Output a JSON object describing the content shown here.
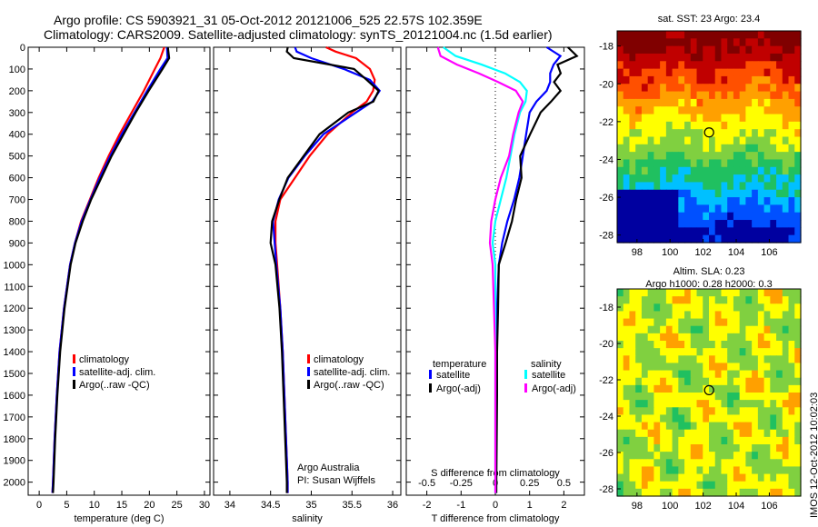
{
  "figure": {
    "title_line1": "Argo profile: CS 5903921_31 05-Oct-2012 20121006_525 22.57S 102.359E",
    "title_line2": "Climatology: CARS2009. Satellite-adjusted climatology: synTS_20121004.nc (1.5d earlier)",
    "stamp": "IMOS 12-Oct-2012 10:02:03"
  },
  "colors": {
    "climatology": "#ff0000",
    "satellite": "#0000ff",
    "argo": "#000000",
    "salinity_satellite": "#00ffff",
    "salinity_argo": "#ff00ff"
  },
  "chart_data": [
    {
      "type": "line",
      "name": "temperature-panel",
      "xlabel": "temperature (deg C)",
      "xlim": [
        -2,
        31
      ],
      "ylim": [
        2060,
        0
      ],
      "xticks": [
        "0",
        "5",
        "10",
        "15",
        "20",
        "25",
        "30"
      ],
      "yticks": [
        "0",
        "100",
        "200",
        "300",
        "400",
        "500",
        "600",
        "700",
        "800",
        "900",
        "1000",
        "1100",
        "1200",
        "1300",
        "1400",
        "1500",
        "1600",
        "1700",
        "1800",
        "1900",
        "2000"
      ],
      "legend": [
        "climatology",
        "satellite-adj. clim.",
        "Argo(..raw -QC)"
      ],
      "depth": [
        0,
        50,
        100,
        200,
        300,
        400,
        500,
        600,
        700,
        800,
        900,
        1000,
        1200,
        1400,
        1600,
        1800,
        2000,
        2050
      ],
      "series": [
        {
          "name": "climatology",
          "color": "#ff0000",
          "values": [
            22.7,
            22.0,
            21.0,
            19.0,
            16.8,
            14.6,
            12.6,
            10.8,
            9.2,
            7.6,
            6.5,
            5.6,
            4.5,
            3.7,
            3.2,
            2.8,
            2.5,
            2.4
          ]
        },
        {
          "name": "satellite-adj. clim.",
          "color": "#0000ff",
          "values": [
            23.2,
            23.3,
            22.0,
            19.6,
            17.3,
            15.0,
            12.9,
            11.0,
            9.3,
            7.7,
            6.5,
            5.6,
            4.5,
            3.7,
            3.2,
            2.8,
            2.5,
            2.4
          ]
        },
        {
          "name": "Argo(..raw -QC)",
          "color": "#000000",
          "values": [
            23.5,
            23.6,
            22.3,
            19.8,
            17.5,
            15.2,
            13.1,
            11.2,
            9.4,
            7.8,
            6.6,
            5.7,
            4.6,
            3.8,
            3.3,
            2.9,
            2.6,
            2.5
          ]
        }
      ]
    },
    {
      "type": "line",
      "name": "salinity-panel",
      "xlabel": "salinity",
      "xlim": [
        33.8,
        36.1
      ],
      "ylim": [
        2060,
        0
      ],
      "xticks": [
        "34",
        "34.5",
        "35",
        "35.5",
        "36"
      ],
      "legend": [
        "climatology",
        "satellite-adj. clim.",
        "Argo(..raw -QC)"
      ],
      "annotation": [
        "Argo Australia",
        "PI: Susan Wijffels"
      ],
      "depth": [
        0,
        20,
        50,
        100,
        150,
        200,
        250,
        300,
        400,
        500,
        600,
        700,
        800,
        900,
        1000,
        1200,
        1400,
        1600,
        1800,
        2000,
        2050
      ],
      "series": [
        {
          "name": "climatology",
          "color": "#ff0000",
          "values": [
            35.18,
            35.3,
            35.55,
            35.72,
            35.78,
            35.76,
            35.68,
            35.5,
            35.2,
            34.98,
            34.8,
            34.62,
            34.56,
            34.56,
            34.58,
            34.62,
            34.65,
            34.67,
            34.69,
            34.71,
            34.71
          ]
        },
        {
          "name": "satellite-adj. clim.",
          "color": "#0000ff",
          "values": [
            34.8,
            34.82,
            35.0,
            35.4,
            35.72,
            35.84,
            35.75,
            35.55,
            35.15,
            34.92,
            34.72,
            34.6,
            34.53,
            34.55,
            34.57,
            34.62,
            34.65,
            34.67,
            34.69,
            34.71,
            34.71
          ]
        },
        {
          "name": "Argo(..raw -QC)",
          "color": "#000000",
          "values": [
            34.72,
            34.7,
            34.78,
            35.52,
            35.68,
            35.82,
            35.76,
            35.45,
            35.1,
            34.9,
            34.72,
            34.6,
            34.52,
            34.5,
            34.56,
            34.61,
            34.64,
            34.66,
            34.68,
            34.7,
            34.7
          ]
        }
      ]
    },
    {
      "type": "line",
      "name": "difference-panel",
      "xlabel": "T difference from climatology",
      "xlabel_top": "S difference from climatology",
      "xlim": [
        -2.6,
        2.6
      ],
      "ylim": [
        2060,
        0
      ],
      "xticks": [
        "-2",
        "-1",
        "0",
        "1",
        "2"
      ],
      "xticks_salinity": [
        "-0.5",
        "-0.25",
        "0",
        "0.25",
        "0.5"
      ],
      "legend_titles": [
        "temperature",
        "salinity"
      ],
      "legend": [
        "satellite",
        "Argo(-adj)",
        "satellite",
        "Argo(-adj)"
      ],
      "depth": [
        0,
        40,
        80,
        120,
        160,
        200,
        250,
        300,
        400,
        500,
        600,
        700,
        800,
        900,
        1000,
        1200,
        1400,
        1600,
        1800,
        2000,
        2050
      ],
      "series": [
        {
          "name": "satellite",
          "color": "#0000ff",
          "values": [
            1.5,
            1.9,
            1.7,
            1.6,
            1.6,
            1.5,
            1.2,
            1.0,
            0.9,
            0.8,
            0.7,
            0.55,
            0.35,
            0.2,
            0.1,
            0.05,
            0.03,
            0.02,
            0.02,
            0.02,
            0.02
          ]
        },
        {
          "name": "Argo(-adj)",
          "color": "#000000",
          "values": [
            2.1,
            2.4,
            1.8,
            1.9,
            1.7,
            1.9,
            1.6,
            1.3,
            1.0,
            0.7,
            0.75,
            0.6,
            0.5,
            0.3,
            0.1,
            0.08,
            0.05,
            0.05,
            0.04,
            0.03,
            0.03
          ]
        },
        {
          "name": "satellite",
          "color": "#00ffff",
          "values": [
            -0.38,
            -0.29,
            -0.1,
            0.07,
            0.18,
            0.23,
            0.22,
            0.18,
            0.14,
            0.11,
            0.08,
            0.04,
            0.0,
            -0.02,
            0.0,
            0.0,
            0.0,
            0.0,
            0.0,
            0.0,
            0.0
          ]
        },
        {
          "name": "Argo(-adj)",
          "color": "#ff00ff",
          "values": [
            -0.42,
            -0.4,
            -0.28,
            -0.12,
            0.02,
            0.15,
            0.2,
            0.17,
            0.13,
            0.1,
            0.04,
            0.0,
            -0.03,
            -0.04,
            -0.02,
            -0.01,
            0.0,
            0.0,
            0.0,
            0.0,
            0.0
          ]
        }
      ]
    },
    {
      "type": "heatmap",
      "name": "sst-map",
      "title": "sat. SST: 23 Argo: 23.4",
      "xlim": [
        96.8,
        107.9
      ],
      "ylim": [
        -28.4,
        -17.2
      ],
      "xticks": [
        "98",
        "100",
        "102",
        "104",
        "106"
      ],
      "yticks": [
        "-18",
        "-20",
        "-22",
        "-24",
        "-26",
        "-28"
      ],
      "marker": {
        "lon": 102.36,
        "lat": -22.57
      },
      "colormap": [
        "#0000a0",
        "#0050ff",
        "#00c0ff",
        "#20c060",
        "#80d040",
        "#ffff00",
        "#ffa000",
        "#ff5000",
        "#c00000",
        "#800000"
      ]
    },
    {
      "type": "heatmap",
      "name": "sla-map",
      "title_line1": "Altim. SLA: 0.23",
      "title_line2": "Argo h1000: 0.28 h2000: 0.3",
      "xlim": [
        96.8,
        107.9
      ],
      "ylim": [
        -28.4,
        -17.0
      ],
      "xticks": [
        "98",
        "100",
        "102",
        "104",
        "106"
      ],
      "yticks": [
        "-18",
        "-20",
        "-22",
        "-24",
        "-26",
        "-28"
      ],
      "marker": {
        "lon": 102.36,
        "lat": -22.57
      },
      "colormap": [
        "#20c060",
        "#80d040",
        "#ffff00",
        "#ffa000",
        "#ff5000"
      ]
    }
  ]
}
